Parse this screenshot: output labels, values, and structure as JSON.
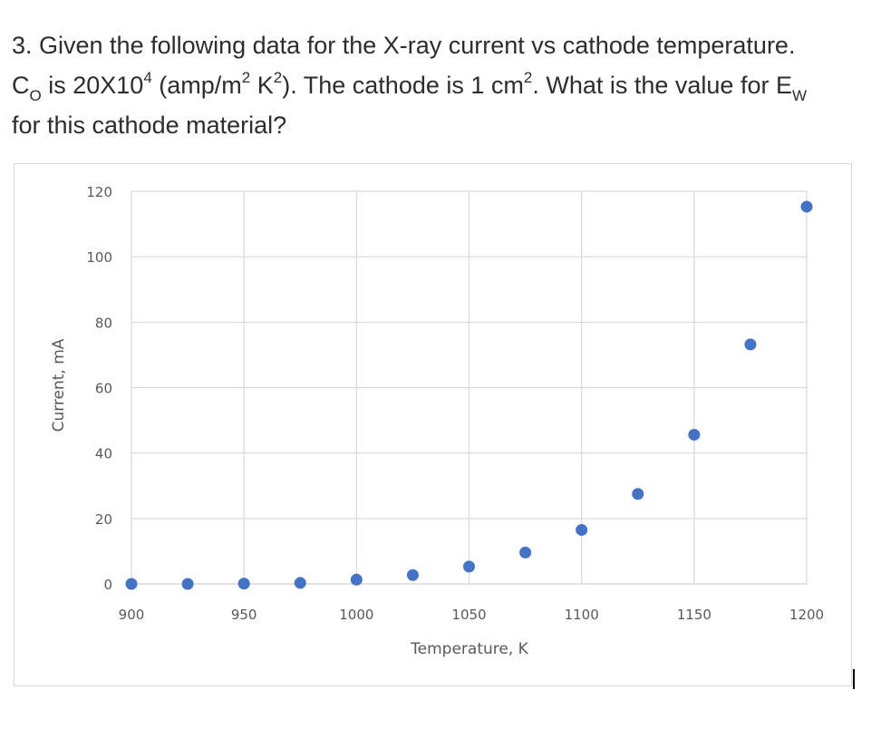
{
  "question": {
    "line1": "3. Given the following data for the X-ray current vs cathode temperature.",
    "l2_part1": "C",
    "l2_sub1": "O",
    "l2_part2": " is 20X10",
    "l2_sup1": "4",
    "l2_part3": " (amp/m",
    "l2_sup2": "2",
    "l2_part4": " K",
    "l2_sup3": "2",
    "l2_part5": "). The cathode is 1 cm",
    "l2_sup4": "2",
    "l2_part6": ". What is the value for E",
    "l2_sub2": "W",
    "line3": "for this cathode material?"
  },
  "chart_data": {
    "type": "scatter",
    "title": "",
    "xlabel": "Temperature, K",
    "ylabel": "Current, mA",
    "xlim": [
      900,
      1200
    ],
    "ylim": [
      0,
      120
    ],
    "xticks": [
      900,
      950,
      1000,
      1050,
      1100,
      1150,
      1200
    ],
    "yticks": [
      0,
      20,
      40,
      60,
      80,
      100,
      120
    ],
    "grid": true,
    "legend": "none",
    "marker_color": "#4472c4",
    "x": [
      900,
      925,
      950,
      975,
      1000,
      1025,
      1050,
      1075,
      1100,
      1125,
      1150,
      1175,
      1200
    ],
    "y": [
      0,
      0,
      0.1,
      0.3,
      1.3,
      2.7,
      5.3,
      9.6,
      16.5,
      27.5,
      45.6,
      73.2,
      115.3
    ]
  }
}
